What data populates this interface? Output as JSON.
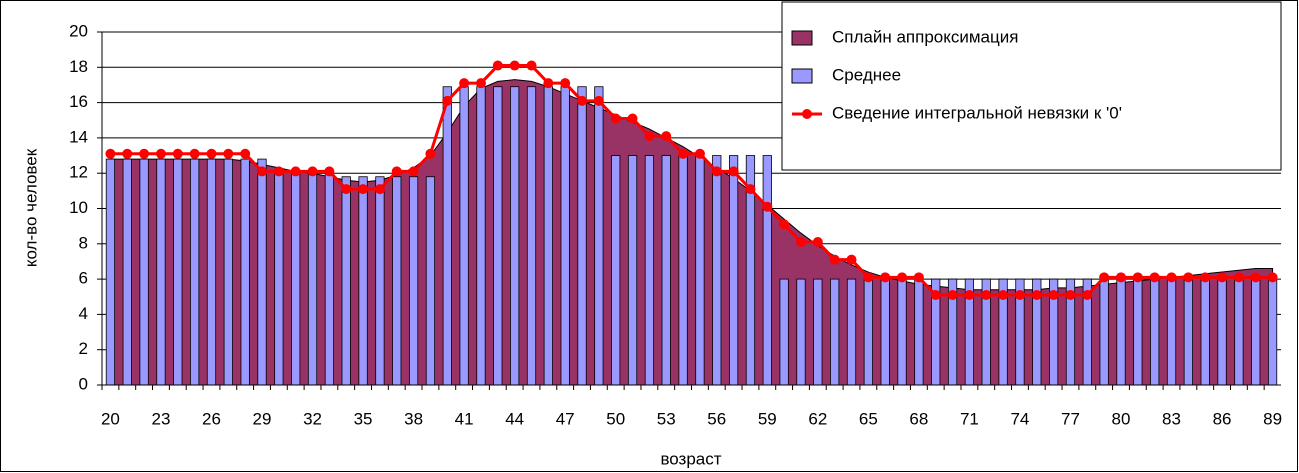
{
  "chart_data": {
    "type": "combo",
    "y_label": "кол-во человек",
    "x_label": "возраст",
    "categories": [
      "20",
      null,
      null,
      "23",
      null,
      null,
      "26",
      null,
      null,
      "29",
      null,
      null,
      "32",
      null,
      null,
      "35",
      null,
      null,
      "38",
      null,
      null,
      "41",
      null,
      null,
      "44",
      null,
      null,
      "47",
      null,
      null,
      "50",
      null,
      null,
      "53",
      null,
      null,
      "56",
      null,
      null,
      "59",
      null,
      null,
      "62",
      null,
      null,
      "65",
      null,
      null,
      "68",
      null,
      null,
      "71",
      null,
      null,
      "74",
      null,
      null,
      "77",
      null,
      null,
      "80",
      null,
      null,
      "83",
      null,
      null,
      "86",
      null,
      null,
      "89"
    ],
    "series": [
      {
        "name": "Сплайн аппроксимация",
        "type": "area",
        "color": "#993366",
        "values": [
          12.8,
          12.8,
          12.8,
          12.8,
          12.8,
          12.8,
          12.8,
          12.8,
          12.7,
          12.5,
          12.3,
          12.1,
          12.0,
          11.8,
          11.6,
          11.5,
          11.6,
          11.9,
          12.3,
          13.0,
          14.3,
          15.8,
          16.8,
          17.2,
          17.3,
          17.2,
          16.9,
          16.5,
          16.1,
          15.7,
          15.3,
          14.9,
          14.5,
          14.0,
          13.5,
          12.9,
          12.3,
          11.7,
          11.0,
          10.2,
          9.4,
          8.6,
          7.9,
          7.3,
          6.8,
          6.4,
          6.1,
          5.9,
          5.7,
          5.6,
          5.5,
          5.4,
          5.4,
          5.4,
          5.4,
          5.4,
          5.5,
          5.5,
          5.6,
          5.7,
          5.8,
          5.9,
          6.0,
          6.1,
          6.2,
          6.3,
          6.4,
          6.5,
          6.6,
          6.6
        ]
      },
      {
        "name": "Среднее",
        "type": "bar",
        "color": "#9999ff",
        "values": [
          12.8,
          12.8,
          12.8,
          12.8,
          12.8,
          12.8,
          12.8,
          12.8,
          12.8,
          12.8,
          12.0,
          12.0,
          12.0,
          12.0,
          11.8,
          11.8,
          11.8,
          11.8,
          11.8,
          11.8,
          16.9,
          16.9,
          16.9,
          16.9,
          16.9,
          16.9,
          16.9,
          16.9,
          16.9,
          16.9,
          13.0,
          13.0,
          13.0,
          13.0,
          13.0,
          13.0,
          13.0,
          13.0,
          13.0,
          13.0,
          6.0,
          6.0,
          6.0,
          6.0,
          6.0,
          6.0,
          6.0,
          6.0,
          6.0,
          6.0,
          6.0,
          6.0,
          6.0,
          6.0,
          6.0,
          6.0,
          6.0,
          6.0,
          6.0,
          6.0,
          6.0,
          6.0,
          6.0,
          6.0,
          6.0,
          6.0,
          6.0,
          6.0,
          6.0,
          6.0
        ]
      },
      {
        "name": "Сведение интегральной невязки к '0'",
        "type": "line",
        "color": "#ff0000",
        "values": [
          13.1,
          13.1,
          13.1,
          13.1,
          13.1,
          13.1,
          13.1,
          13.1,
          13.1,
          12.1,
          12.1,
          12.1,
          12.1,
          12.1,
          11.1,
          11.1,
          11.1,
          12.1,
          12.1,
          13.1,
          16.1,
          17.1,
          17.1,
          18.1,
          18.1,
          18.1,
          17.1,
          17.1,
          16.1,
          16.1,
          15.1,
          15.1,
          14.1,
          14.1,
          13.1,
          13.1,
          12.1,
          12.1,
          11.1,
          10.1,
          9.1,
          8.1,
          8.1,
          7.1,
          7.1,
          6.1,
          6.1,
          6.1,
          6.1,
          5.1,
          5.1,
          5.1,
          5.1,
          5.1,
          5.1,
          5.1,
          5.1,
          5.1,
          5.1,
          6.1,
          6.1,
          6.1,
          6.1,
          6.1,
          6.1,
          6.1,
          6.1,
          6.1,
          6.1,
          6.1
        ]
      }
    ],
    "ylim": [
      0,
      20
    ],
    "yticks": [
      0,
      2,
      4,
      6,
      8,
      10,
      12,
      14,
      16,
      18,
      20
    ],
    "grid": true,
    "legend": "top-right"
  }
}
